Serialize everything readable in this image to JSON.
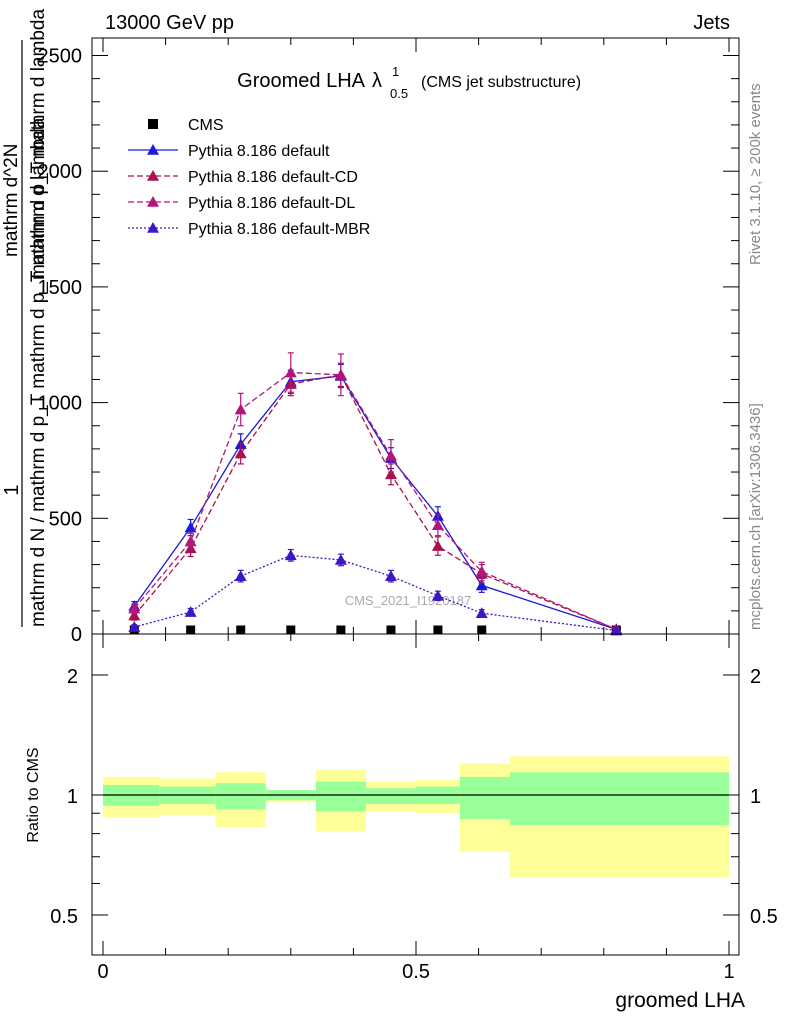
{
  "header": {
    "left_label": "13000 GeV pp",
    "right_label": "Jets"
  },
  "side_labels": {
    "rivet": "Rivet 3.1.10, ≥ 200k events",
    "mcplots": "mcplots.cern.ch [arXiv:1306.3436]"
  },
  "chart_data": [
    {
      "type": "line",
      "title": "Groomed LHA",
      "title_symbol": "λ",
      "title_sup": "1",
      "title_sub": "0.5",
      "subtitle": "(CMS jet substructure)",
      "watermark": "CMS_2021_I1920187",
      "ylabel_numerator": "1",
      "ylabel_denominator": "mathrm d N / mathrm d p_T mathrm d p_T mathrm d lambda",
      "ylabel_fraction_num": "mathrm d^2N",
      "ylabel_fraction_den": "mathrm d p_T mathrm d lambda",
      "xlabel": "groomed LHA",
      "xlim": [
        0,
        1
      ],
      "ylim": [
        0,
        2600
      ],
      "y_ticks": [
        0,
        500,
        1000,
        1500,
        2000,
        2500
      ],
      "y_tick_labels": [
        "0",
        "500",
        "1000",
        "1500",
        "2000",
        "2500"
      ],
      "legend_position": "top-left",
      "bin_edges": [
        0.0,
        0.09,
        0.18,
        0.26,
        0.34,
        0.42,
        0.5,
        0.57,
        0.65,
        1.0
      ],
      "x": [
        0.05,
        0.14,
        0.22,
        0.3,
        0.38,
        0.46,
        0.535,
        0.605,
        0.82
      ],
      "series": [
        {
          "name": "CMS",
          "style": "marker",
          "color": "#000000",
          "values": [
            2,
            2,
            3,
            4,
            4,
            3,
            2,
            2,
            1
          ],
          "errors": [
            0,
            0,
            0,
            0,
            0,
            0,
            0,
            0,
            0
          ]
        },
        {
          "name": "Pythia 8.186 default",
          "style": "solid",
          "color": "#1a1adb",
          "values": [
            120,
            460,
            820,
            1090,
            1115,
            760,
            510,
            210,
            20
          ],
          "errors": [
            20,
            35,
            45,
            50,
            50,
            45,
            40,
            30,
            10
          ]
        },
        {
          "name": "Pythia 8.186 default-CD",
          "style": "dashed",
          "color": "#a8104e",
          "values": [
            80,
            370,
            780,
            1080,
            1120,
            690,
            380,
            260,
            20
          ],
          "errors": [
            20,
            35,
            45,
            50,
            50,
            45,
            40,
            40,
            10
          ]
        },
        {
          "name": "Pythia 8.186 default-DL",
          "style": "dashed",
          "color": "#b5157a",
          "values": [
            110,
            400,
            970,
            1130,
            1120,
            770,
            470,
            270,
            20
          ],
          "errors": [
            20,
            35,
            70,
            85,
            90,
            70,
            45,
            40,
            10
          ]
        },
        {
          "name": "Pythia 8.186 default-MBR",
          "style": "dotted",
          "color": "#3d18c2",
          "values": [
            30,
            95,
            250,
            340,
            320,
            250,
            165,
            90,
            15
          ],
          "errors": [
            10,
            15,
            25,
            25,
            25,
            25,
            20,
            15,
            5
          ]
        }
      ]
    },
    {
      "type": "area",
      "ylabel": "Ratio to CMS",
      "xlabel": "groomed LHA",
      "xlim": [
        0,
        1
      ],
      "ylim": [
        0.4,
        2.25
      ],
      "y_ticks": [
        0.5,
        1,
        2
      ],
      "y_tick_labels": [
        "0.5",
        "1",
        "2"
      ],
      "x_ticks": [
        0,
        0.5,
        1
      ],
      "x_tick_labels": [
        "0",
        "0.5",
        "1"
      ],
      "reference_line": 1,
      "bands": {
        "bin_edges": [
          0.0,
          0.09,
          0.18,
          0.26,
          0.34,
          0.42,
          0.5,
          0.57,
          0.65,
          1.0
        ],
        "stat_lo": [
          0.94,
          0.95,
          0.92,
          0.97,
          0.91,
          0.95,
          0.95,
          0.87,
          0.84
        ],
        "stat_hi": [
          1.06,
          1.05,
          1.07,
          1.03,
          1.08,
          1.04,
          1.05,
          1.11,
          1.14
        ],
        "total_lo": [
          0.88,
          0.89,
          0.83,
          0.96,
          0.81,
          0.91,
          0.9,
          0.72,
          0.62
        ],
        "total_hi": [
          1.11,
          1.1,
          1.14,
          1.02,
          1.16,
          1.08,
          1.09,
          1.2,
          1.25
        ],
        "stat_color": "#99ff99",
        "total_color": "#ffff99"
      }
    }
  ]
}
